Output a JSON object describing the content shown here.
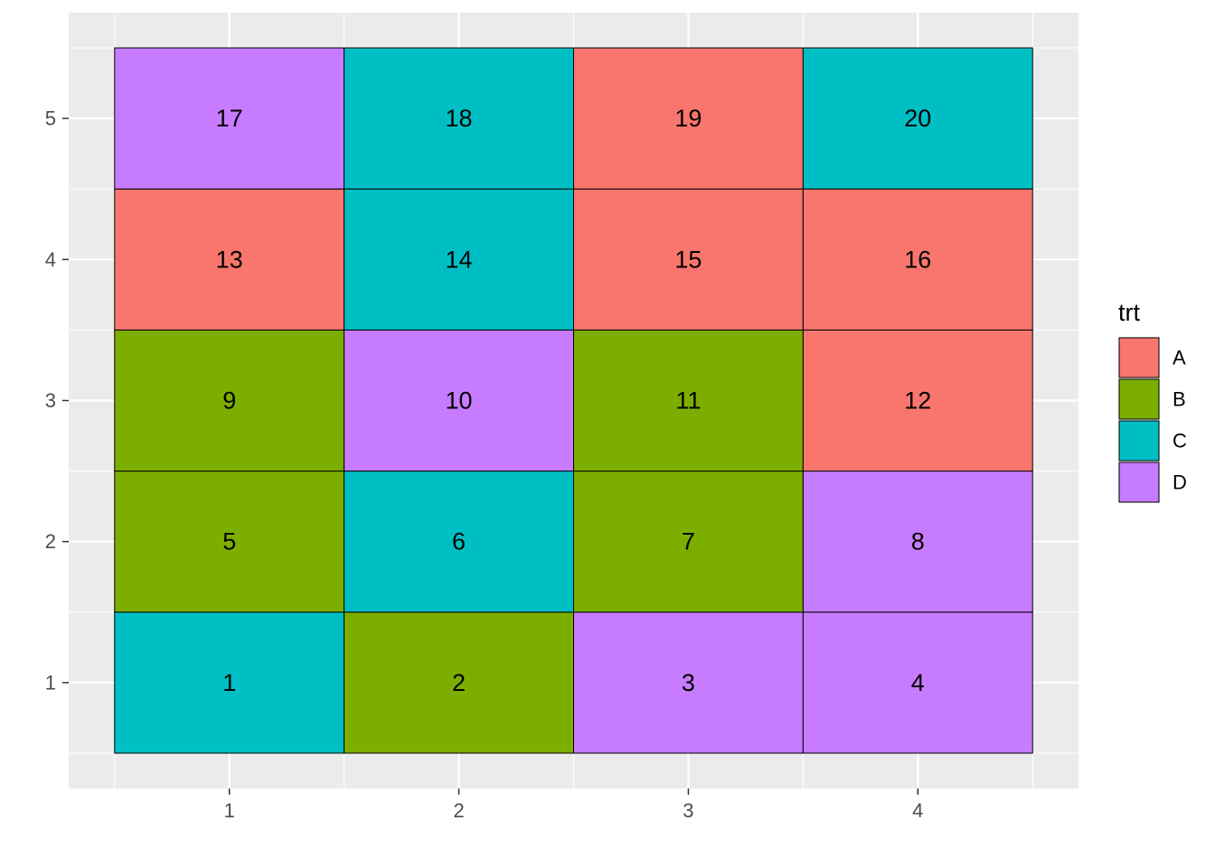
{
  "chart_data": {
    "type": "heatmap",
    "title": "",
    "xlabel": "",
    "ylabel": "",
    "x_ticks": [
      "1",
      "2",
      "3",
      "4"
    ],
    "y_ticks": [
      "1",
      "2",
      "3",
      "4",
      "5"
    ],
    "xlim": [
      0.3,
      4.7
    ],
    "ylim": [
      0.25,
      5.75
    ],
    "grid": true,
    "legend": {
      "title": "trt",
      "position": "right",
      "items": [
        {
          "label": "A",
          "color": "#F8766D"
        },
        {
          "label": "B",
          "color": "#7CAE00"
        },
        {
          "label": "C",
          "color": "#00BFC4"
        },
        {
          "label": "D",
          "color": "#C77CFF"
        }
      ]
    },
    "cells": [
      {
        "x": 1,
        "y": 1,
        "label": "1",
        "trt": "C"
      },
      {
        "x": 2,
        "y": 1,
        "label": "2",
        "trt": "B"
      },
      {
        "x": 3,
        "y": 1,
        "label": "3",
        "trt": "D"
      },
      {
        "x": 4,
        "y": 1,
        "label": "4",
        "trt": "D"
      },
      {
        "x": 1,
        "y": 2,
        "label": "5",
        "trt": "B"
      },
      {
        "x": 2,
        "y": 2,
        "label": "6",
        "trt": "C"
      },
      {
        "x": 3,
        "y": 2,
        "label": "7",
        "trt": "B"
      },
      {
        "x": 4,
        "y": 2,
        "label": "8",
        "trt": "D"
      },
      {
        "x": 1,
        "y": 3,
        "label": "9",
        "trt": "B"
      },
      {
        "x": 2,
        "y": 3,
        "label": "10",
        "trt": "D"
      },
      {
        "x": 3,
        "y": 3,
        "label": "11",
        "trt": "B"
      },
      {
        "x": 4,
        "y": 3,
        "label": "12",
        "trt": "A"
      },
      {
        "x": 1,
        "y": 4,
        "label": "13",
        "trt": "A"
      },
      {
        "x": 2,
        "y": 4,
        "label": "14",
        "trt": "C"
      },
      {
        "x": 3,
        "y": 4,
        "label": "15",
        "trt": "A"
      },
      {
        "x": 4,
        "y": 4,
        "label": "16",
        "trt": "A"
      },
      {
        "x": 1,
        "y": 5,
        "label": "17",
        "trt": "D"
      },
      {
        "x": 2,
        "y": 5,
        "label": "18",
        "trt": "C"
      },
      {
        "x": 3,
        "y": 5,
        "label": "19",
        "trt": "A"
      },
      {
        "x": 4,
        "y": 5,
        "label": "20",
        "trt": "C"
      }
    ]
  },
  "style": {
    "panel_background": "#EBEBEB",
    "grid_color": "#FFFFFF",
    "cell_border": "#000000",
    "tick_color": "#333333"
  }
}
